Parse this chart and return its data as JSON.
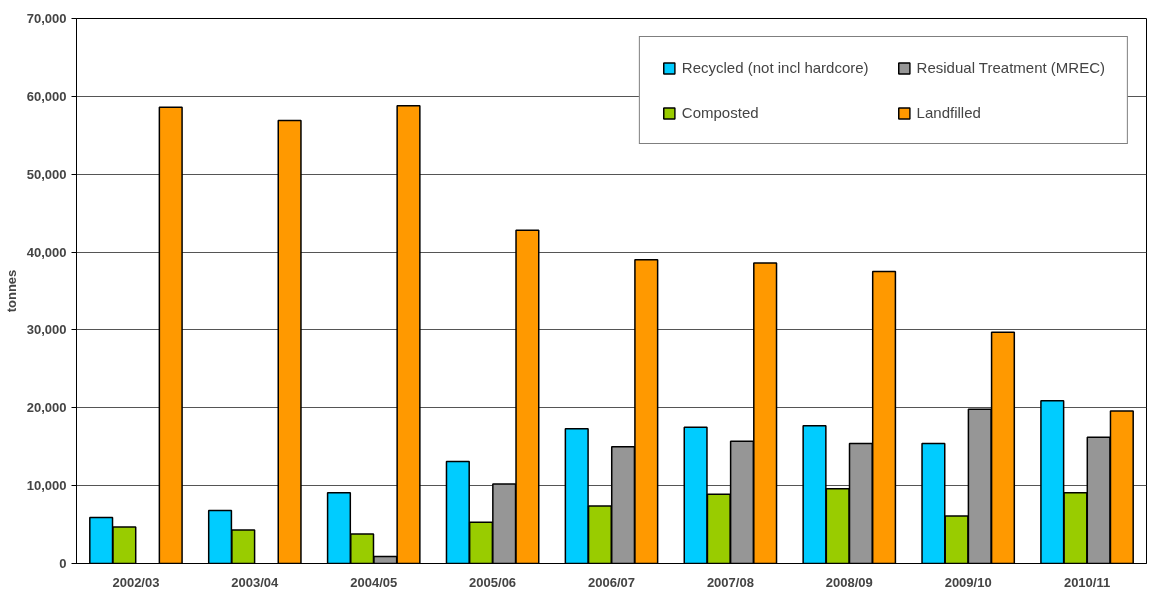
{
  "chart_data": {
    "type": "bar",
    "ylabel": "tonnes",
    "categories": [
      "2002/03",
      "2003/04",
      "2004/05",
      "2005/06",
      "2006/07",
      "2007/08",
      "2008/09",
      "2009/10",
      "2010/11"
    ],
    "series": [
      {
        "name": "Recycled (not incl hardcore)",
        "color": "#00ccff",
        "values": [
          5900,
          6800,
          9100,
          13100,
          17300,
          17500,
          17700,
          15400,
          20900
        ]
      },
      {
        "name": "Composted",
        "color": "#99cc00",
        "values": [
          4700,
          4300,
          3800,
          5300,
          7400,
          8900,
          9600,
          6100,
          9100
        ]
      },
      {
        "name": "Residual Treatment (MREC)",
        "color": "#969696",
        "values": [
          null,
          null,
          900,
          10200,
          15000,
          15700,
          15400,
          19800,
          16200
        ]
      },
      {
        "name": "Landfilled",
        "color": "#ff9900",
        "values": [
          58600,
          56900,
          58800,
          42800,
          39000,
          38600,
          37500,
          29700,
          19600
        ]
      }
    ],
    "ylim": [
      0,
      70000
    ],
    "yticks": [
      {
        "value": 0,
        "label": "0"
      },
      {
        "value": 10000,
        "label": "10,000"
      },
      {
        "value": 20000,
        "label": "20,000"
      },
      {
        "value": 30000,
        "label": "30,000"
      },
      {
        "value": 40000,
        "label": "40,000"
      },
      {
        "value": 50000,
        "label": "50,000"
      },
      {
        "value": 60000,
        "label": "60,000"
      },
      {
        "value": 70000,
        "label": "70,000"
      }
    ],
    "grid": "y",
    "legend": "top right"
  }
}
